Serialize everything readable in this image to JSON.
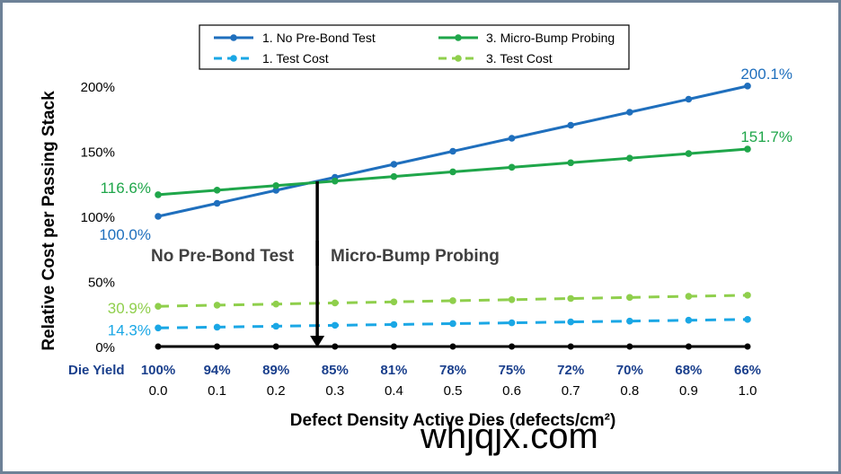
{
  "chart_data": {
    "type": "line",
    "ylabel": "Relative Cost per Passing Stack",
    "xlabel": "Defect Density Active Dies (defects/cm²)",
    "x": [
      0.0,
      0.1,
      0.2,
      0.3,
      0.4,
      0.5,
      0.6,
      0.7,
      0.8,
      0.9,
      1.0
    ],
    "x_tick_labels": [
      "0.0",
      "0.1",
      "0.2",
      "0.3",
      "0.4",
      "0.5",
      "0.6",
      "0.7",
      "0.8",
      "0.9",
      "1.0"
    ],
    "die_yield_label": "Die Yield",
    "die_yield": [
      "100%",
      "94%",
      "89%",
      "85%",
      "81%",
      "78%",
      "75%",
      "72%",
      "70%",
      "68%",
      "66%"
    ],
    "y_ticks": [
      0,
      50,
      100,
      150,
      200
    ],
    "y_tick_labels": [
      "0%",
      "50%",
      "100%",
      "150%",
      "200%"
    ],
    "ylim": [
      0,
      210
    ],
    "xlim": [
      0,
      1
    ],
    "grid": false,
    "legend_position": "top",
    "series": [
      {
        "name": "1. No Pre-Bond Test",
        "color": "#1f6fbd",
        "dash": false,
        "values": [
          100.0,
          110.0,
          120.0,
          130.0,
          140.0,
          150.0,
          160.0,
          170.0,
          180.0,
          190.0,
          200.1
        ]
      },
      {
        "name": "3. Micro-Bump Probing",
        "color": "#1fa64a",
        "dash": false,
        "values": [
          116.6,
          120.1,
          123.6,
          127.1,
          130.6,
          134.2,
          137.7,
          141.2,
          144.7,
          148.2,
          151.7
        ]
      },
      {
        "name": "1. Test Cost",
        "color": "#1aa7e5",
        "dash": true,
        "values": [
          14.3,
          14.9,
          15.6,
          16.3,
          16.9,
          17.6,
          18.2,
          18.9,
          19.5,
          20.2,
          20.8
        ]
      },
      {
        "name": "3. Test Cost",
        "color": "#8fcf4c",
        "dash": true,
        "values": [
          30.9,
          31.8,
          32.6,
          33.5,
          34.3,
          35.2,
          36.0,
          36.9,
          37.7,
          38.6,
          39.4
        ]
      }
    ],
    "baseline": {
      "color": "#000000",
      "values": [
        0,
        0,
        0,
        0,
        0,
        0,
        0,
        0,
        0,
        0,
        0
      ]
    },
    "annotations": {
      "start_labels": [
        {
          "text": "116.6%",
          "series": 1,
          "color": "#1fa64a"
        },
        {
          "text": "100.0%",
          "series": 0,
          "color": "#1f6fbd"
        },
        {
          "text": "30.9%",
          "series": 3,
          "color": "#8fcf4c"
        },
        {
          "text": "14.3%",
          "series": 2,
          "color": "#1aa7e5"
        }
      ],
      "end_labels": [
        {
          "text": "200.1%",
          "series": 0,
          "color": "#1f6fbd"
        },
        {
          "text": "151.7%",
          "series": 1,
          "color": "#1fa64a"
        }
      ],
      "crossover_x": 0.27,
      "crossover_y": 127.0,
      "region_left": "No Pre-Bond Test",
      "region_right": "Micro-Bump Probing"
    }
  },
  "watermark": "whjqjx.com"
}
